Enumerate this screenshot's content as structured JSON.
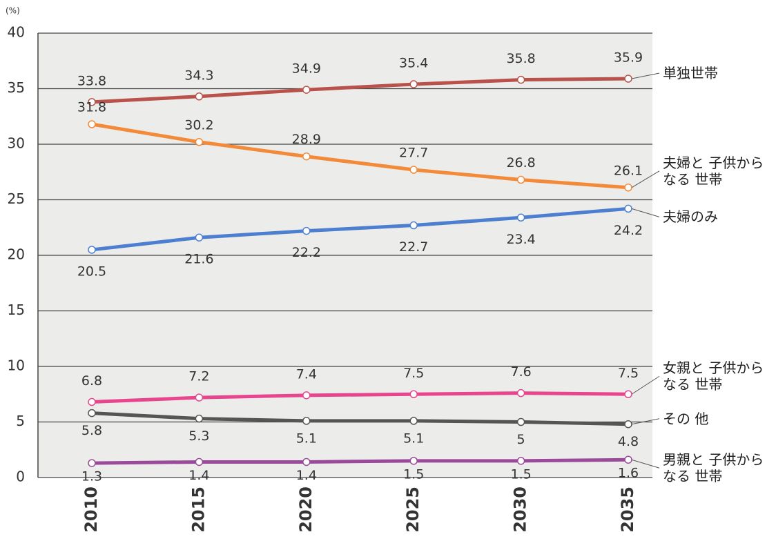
{
  "chart_data": {
    "type": "line",
    "unit": "(%)",
    "categories": [
      "2010",
      "2015",
      "2020",
      "2025",
      "2030",
      "2035"
    ],
    "ylim": [
      0,
      40
    ],
    "yticks": [
      0,
      5,
      10,
      15,
      20,
      25,
      30,
      35,
      40
    ],
    "grid": true,
    "series": [
      {
        "name": "単独世帯",
        "color": "#b8524a",
        "values": [
          33.8,
          34.3,
          34.9,
          35.4,
          35.8,
          35.9
        ]
      },
      {
        "name": "夫婦と 子供から\nなる 世帯",
        "color": "#f28a3a",
        "values": [
          31.8,
          30.2,
          28.9,
          27.7,
          26.8,
          26.1
        ]
      },
      {
        "name": "夫婦のみ",
        "color": "#4d7fd0",
        "values": [
          20.5,
          21.6,
          22.2,
          22.7,
          23.4,
          24.2
        ]
      },
      {
        "name": "女親と 子供から\nなる 世帯",
        "color": "#e8458f",
        "values": [
          6.8,
          7.2,
          7.4,
          7.5,
          7.6,
          7.5
        ]
      },
      {
        "name": "その 他",
        "color": "#555555",
        "values": [
          5.8,
          5.3,
          5.1,
          5.1,
          5.0,
          4.8
        ]
      },
      {
        "name": "男親と 子供から\nなる 世帯",
        "color": "#9b4a9b",
        "values": [
          1.3,
          1.4,
          1.4,
          1.5,
          1.5,
          1.6
        ]
      }
    ]
  }
}
